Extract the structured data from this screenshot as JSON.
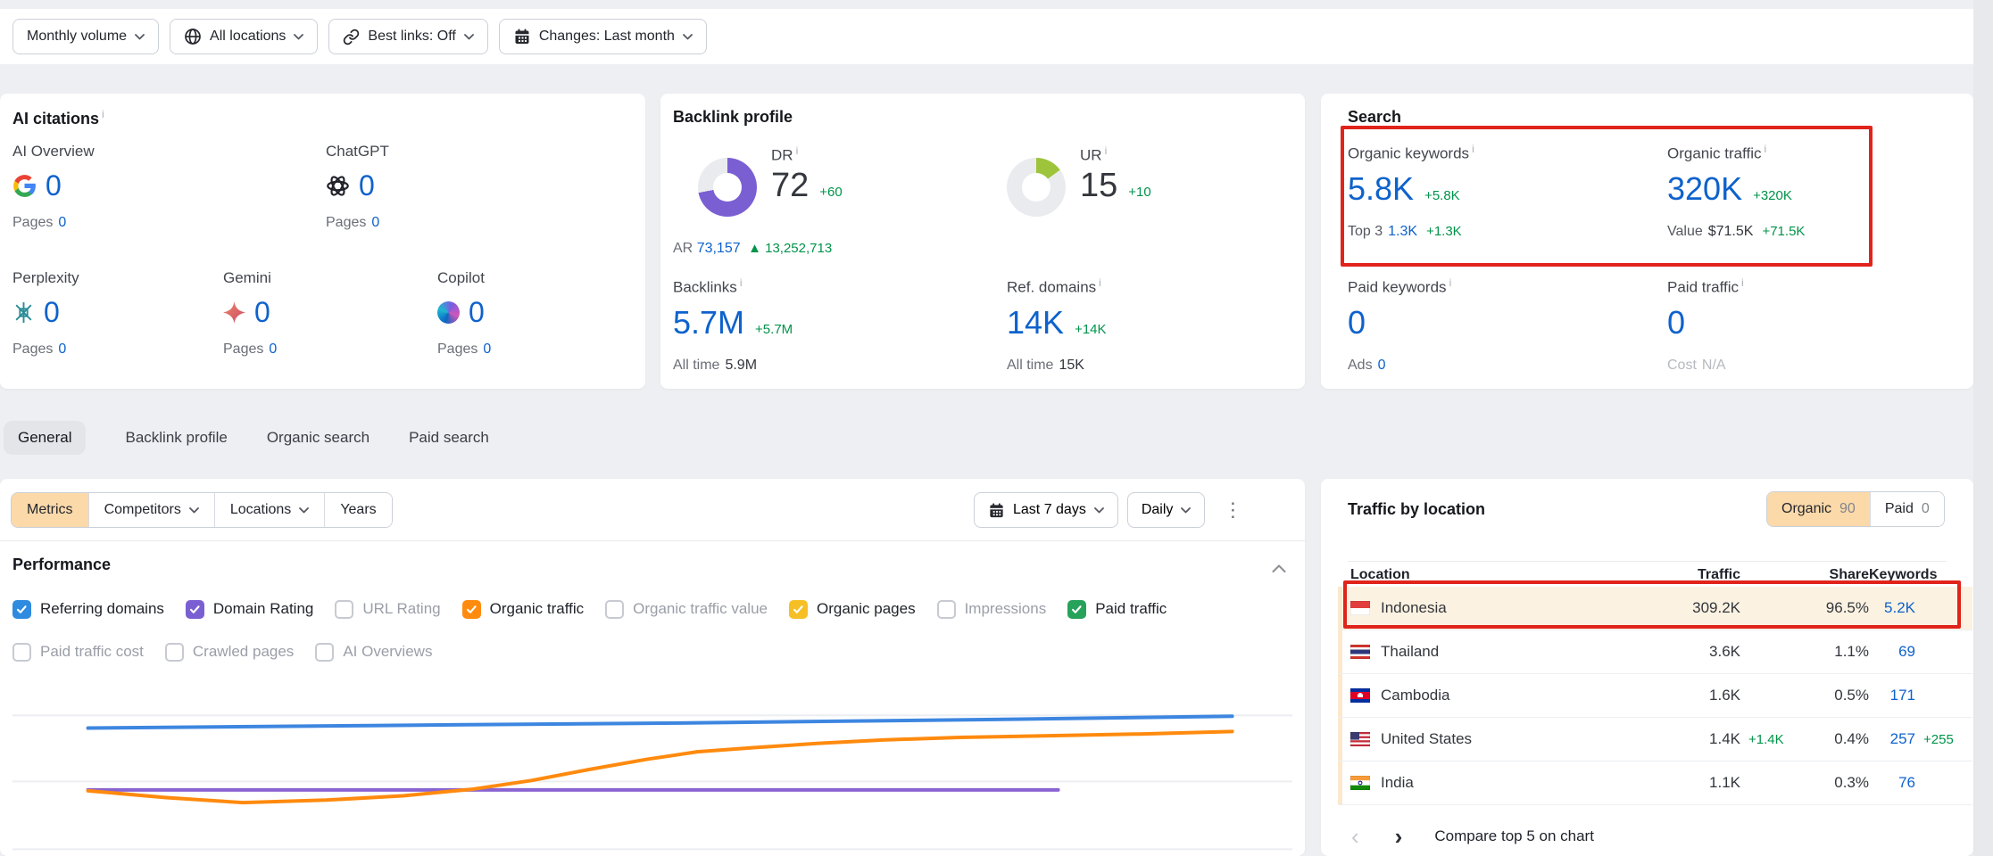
{
  "toolbar": {
    "buttons": [
      {
        "label": "Monthly volume",
        "icon": "chevron-down-icon"
      },
      {
        "label": "All locations",
        "icon": "globe-icon"
      },
      {
        "label": "Best links: Off",
        "icon": "link-icon"
      },
      {
        "label": "Changes: Last month",
        "icon": "calendar-icon"
      }
    ]
  },
  "ai_citations": {
    "title": "AI citations",
    "items": [
      {
        "label": "AI Overview",
        "icon": "google-icon",
        "value": "0",
        "pages_label": "Pages",
        "pages_value": "0"
      },
      {
        "label": "ChatGPT",
        "icon": "chatgpt-icon",
        "value": "0",
        "pages_label": "Pages",
        "pages_value": "0"
      },
      {
        "label": "Perplexity",
        "icon": "perplexity-icon",
        "value": "0",
        "pages_label": "Pages",
        "pages_value": "0"
      },
      {
        "label": "Gemini",
        "icon": "gemini-icon",
        "value": "0",
        "pages_label": "Pages",
        "pages_value": "0"
      },
      {
        "label": "Copilot",
        "icon": "copilot-icon",
        "value": "0",
        "pages_label": "Pages",
        "pages_value": "0"
      }
    ]
  },
  "backlink_profile": {
    "title": "Backlink profile",
    "dr": {
      "label": "DR",
      "value": "72",
      "delta": "+60",
      "donut_pct": 72,
      "donut_color": "#7a5fd3"
    },
    "ur": {
      "label": "UR",
      "value": "15",
      "delta": "+10",
      "donut_pct": 15,
      "donut_color": "#9dc43b"
    },
    "ar": {
      "label": "AR",
      "value": "73,157",
      "delta": "13,252,713"
    },
    "backlinks": {
      "label": "Backlinks",
      "value": "5.7M",
      "delta": "+5.7M",
      "alltime_label": "All time",
      "alltime_value": "5.9M"
    },
    "ref_domains": {
      "label": "Ref. domains",
      "value": "14K",
      "delta": "+14K",
      "alltime_label": "All time",
      "alltime_value": "15K"
    }
  },
  "search": {
    "title": "Search",
    "organic_keywords": {
      "label": "Organic keywords",
      "value": "5.8K",
      "delta": "+5.8K",
      "sub_label": "Top 3",
      "sub_value": "1.3K",
      "sub_delta": "+1.3K"
    },
    "organic_traffic": {
      "label": "Organic traffic",
      "value": "320K",
      "delta": "+320K",
      "sub_label": "Value",
      "sub_value": "$71.5K",
      "sub_delta": "+71.5K"
    },
    "paid_keywords": {
      "label": "Paid keywords",
      "value": "0",
      "sub_label": "Ads",
      "sub_value": "0"
    },
    "paid_traffic": {
      "label": "Paid traffic",
      "value": "0",
      "sub_label": "Cost",
      "sub_value": "N/A"
    }
  },
  "tabs": {
    "items": [
      {
        "label": "General",
        "active": true
      },
      {
        "label": "Backlink profile",
        "active": false
      },
      {
        "label": "Organic search",
        "active": false
      },
      {
        "label": "Paid search",
        "active": false
      }
    ]
  },
  "metrics_panel": {
    "segments": [
      {
        "label": "Metrics",
        "active": true,
        "dropdown": false
      },
      {
        "label": "Competitors",
        "active": false,
        "dropdown": true
      },
      {
        "label": "Locations",
        "active": false,
        "dropdown": true
      },
      {
        "label": "Years",
        "active": false,
        "dropdown": false
      }
    ],
    "date_range_label": "Last 7 days",
    "granularity_label": "Daily",
    "section_title": "Performance",
    "legend": [
      {
        "label": "Referring domains",
        "checked": true,
        "color": "#2f8be0"
      },
      {
        "label": "Domain Rating",
        "checked": true,
        "color": "#7a5fd3"
      },
      {
        "label": "URL Rating",
        "checked": false
      },
      {
        "label": "Organic traffic",
        "checked": true,
        "color": "#ff8b0e"
      },
      {
        "label": "Organic traffic value",
        "checked": false
      },
      {
        "label": "Organic pages",
        "checked": true,
        "color": "#f6bf26"
      },
      {
        "label": "Impressions",
        "checked": false
      },
      {
        "label": "Paid traffic",
        "checked": true,
        "color": "#27a25b"
      },
      {
        "label": "Paid traffic cost",
        "checked": false
      },
      {
        "label": "Crawled pages",
        "checked": false
      },
      {
        "label": "AI Overviews",
        "checked": false
      }
    ]
  },
  "chart_data": {
    "type": "line",
    "title": "Performance",
    "x_range": "Last 7 days (daily)",
    "y_axis_labels": "none visible",
    "x_axis_labels": "none visible",
    "grid": true,
    "gridlines_y_pct": [
      17,
      56,
      96
    ],
    "series": [
      {
        "name": "Domain Rating",
        "color": "#8a63d2",
        "trend": "flat horizontal line ending at ~82% of width",
        "points_pct": [
          [
            5.9,
            61
          ],
          [
            81.7,
            61
          ]
        ]
      },
      {
        "name": "Referring domains",
        "color": "#3d86e0",
        "trend": "high, nearly flat with slight rise to top gridline",
        "points_pct": [
          [
            5.9,
            24.5
          ],
          [
            28,
            23
          ],
          [
            52,
            21.5
          ],
          [
            76,
            19.5
          ],
          [
            95.3,
            17.5
          ]
        ]
      },
      {
        "name": "Organic traffic",
        "color": "#ff8a0e",
        "trend": "starts mid, slight dip, S-curve climb, plateaus just below Referring domains",
        "points_pct": [
          [
            5.9,
            61.5
          ],
          [
            12,
            65.5
          ],
          [
            18,
            68.5
          ],
          [
            24.5,
            67
          ],
          [
            30.5,
            64.5
          ],
          [
            36,
            60.5
          ],
          [
            40.5,
            55.5
          ],
          [
            45,
            49
          ],
          [
            49.5,
            43
          ],
          [
            53.5,
            38.5
          ],
          [
            58,
            36
          ],
          [
            63,
            33.5
          ],
          [
            68,
            31.5
          ],
          [
            74,
            30
          ],
          [
            81,
            29
          ],
          [
            88,
            28
          ],
          [
            95.3,
            26.5
          ]
        ]
      }
    ]
  },
  "traffic_by_location": {
    "title": "Traffic by location",
    "toggle": {
      "options": [
        {
          "label": "Organic",
          "count": "90",
          "active": true
        },
        {
          "label": "Paid",
          "count": "0",
          "active": false
        }
      ]
    },
    "columns": [
      "Location",
      "Traffic",
      "Share",
      "Keywords"
    ],
    "rows": [
      {
        "location": "Indonesia",
        "flag": "indonesia-flag",
        "traffic": "309.2K",
        "traffic_delta": "",
        "share": "96.5%",
        "keywords": "5.2K",
        "keywords_delta": "",
        "highlighted": true
      },
      {
        "location": "Thailand",
        "flag": "thailand-flag",
        "traffic": "3.6K",
        "traffic_delta": "",
        "share": "1.1%",
        "keywords": "69",
        "keywords_delta": "",
        "highlighted": false
      },
      {
        "location": "Cambodia",
        "flag": "cambodia-flag",
        "traffic": "1.6K",
        "traffic_delta": "",
        "share": "0.5%",
        "keywords": "171",
        "keywords_delta": "",
        "highlighted": false
      },
      {
        "location": "United States",
        "flag": "us-flag",
        "traffic": "1.4K",
        "traffic_delta": "+1.4K",
        "share": "0.4%",
        "keywords": "257",
        "keywords_delta": "+255",
        "highlighted": false
      },
      {
        "location": "India",
        "flag": "india-flag",
        "traffic": "1.1K",
        "traffic_delta": "",
        "share": "0.3%",
        "keywords": "76",
        "keywords_delta": "",
        "highlighted": false
      }
    ],
    "pagination": {
      "prev_enabled": false,
      "next_enabled": true
    },
    "footer_action": "Compare top 5 on chart"
  },
  "annotations": {
    "highlight_color": "#e0241b",
    "regions": [
      "search-organic-metrics",
      "indonesia-row"
    ]
  }
}
